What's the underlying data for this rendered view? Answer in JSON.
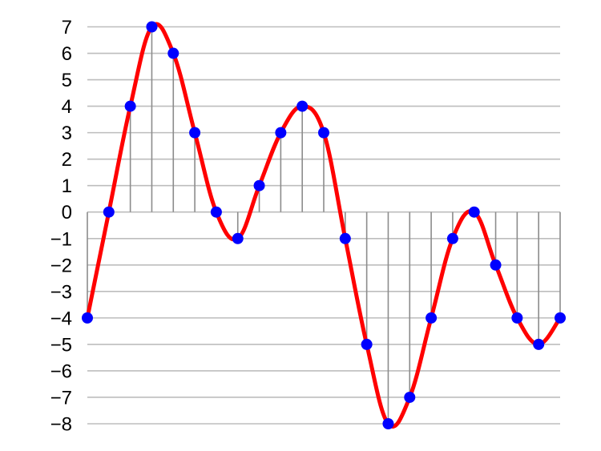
{
  "chart_data": {
    "type": "line",
    "x": [
      0,
      1,
      2,
      3,
      4,
      5,
      6,
      7,
      8,
      9,
      10,
      11,
      12,
      13,
      14,
      15,
      16,
      17,
      18,
      19,
      20,
      21,
      22
    ],
    "series": [
      {
        "values": [
          -4,
          0,
          4,
          7,
          6,
          3,
          0,
          -1,
          1,
          3,
          4,
          3,
          -1,
          -5,
          -8,
          -7,
          -4,
          -1,
          0,
          -2,
          -4,
          -5,
          -4
        ]
      }
    ],
    "yticks": [
      "7",
      "6",
      "5",
      "4",
      "3",
      "2",
      "1",
      "0",
      "−1",
      "−2",
      "−3",
      "−4",
      "−5",
      "−6",
      "−7",
      "−8"
    ],
    "ylim": [
      -8,
      7
    ],
    "grid": true,
    "legend": "none",
    "colors": {
      "curve": "#ff0000",
      "points": "#0000ff",
      "stems": "#8c8c8c",
      "grid": "#bdbdbd"
    }
  }
}
